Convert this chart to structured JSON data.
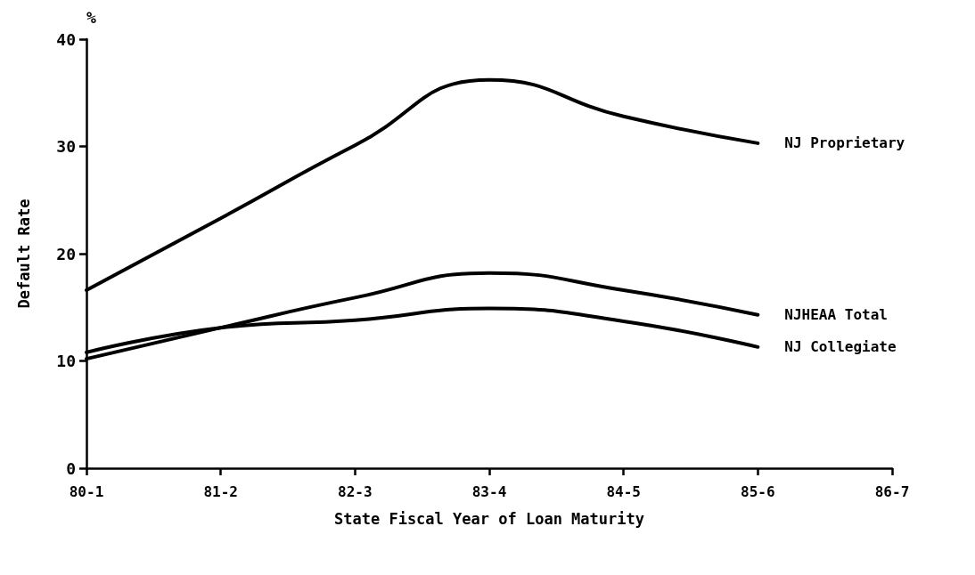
{
  "chart_data": {
    "type": "line",
    "xlabel": "State Fiscal Year of Loan Maturity",
    "ylabel": "Default Rate",
    "annotations": [
      "%"
    ],
    "categories": [
      "80-1",
      "81-2",
      "82-3",
      "83-4",
      "84-5",
      "85-6",
      "86-7"
    ],
    "series": [
      {
        "name": "NJ Proprietary",
        "color": "#000000",
        "values": [
          16.6,
          23.3,
          30.1,
          36.2,
          32.8,
          30.3,
          null
        ]
      },
      {
        "name": "NJHEAA Total",
        "color": "#000000",
        "values": [
          10.2,
          13.1,
          15.9,
          18.2,
          16.6,
          14.3,
          null
        ]
      },
      {
        "name": "NJ Collegiate",
        "color": "#000000",
        "values": [
          10.8,
          13.1,
          13.8,
          14.9,
          13.7,
          11.3,
          null
        ]
      }
    ],
    "ylim": [
      0,
      40
    ],
    "yticks": [
      0,
      10,
      20,
      30,
      40
    ],
    "grid": false,
    "legend": false,
    "marker": "none",
    "line_style": "solid"
  }
}
